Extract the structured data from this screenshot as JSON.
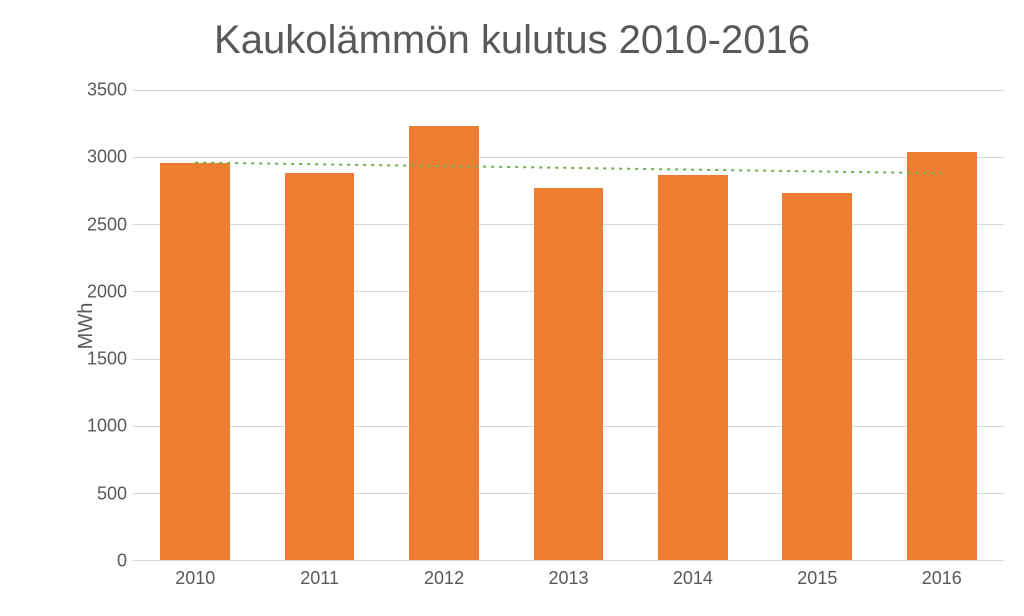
{
  "chart": {
    "type": "bar",
    "title": "Kaukolämmön kulutus 2010-2016",
    "title_fontsize": 40,
    "title_color": "#595959",
    "ylabel": "MWh",
    "ylabel_fontsize": 20,
    "label_color": "#595959",
    "tick_fontsize": 18,
    "categories": [
      "2010",
      "2011",
      "2012",
      "2013",
      "2014",
      "2015",
      "2016"
    ],
    "values": [
      2960,
      2880,
      3230,
      2770,
      2870,
      2730,
      3040
    ],
    "bar_color": "#ed7d31",
    "bar_width_ratio": 0.56,
    "ylim": [
      0,
      3500
    ],
    "ytick_step": 500,
    "grid_color": "#d9d9d9",
    "background_color": "#ffffff",
    "trendline": {
      "color": "#70ad47",
      "dash": "3,5",
      "width": 2,
      "y_start": 2960,
      "y_end": 2880
    }
  }
}
